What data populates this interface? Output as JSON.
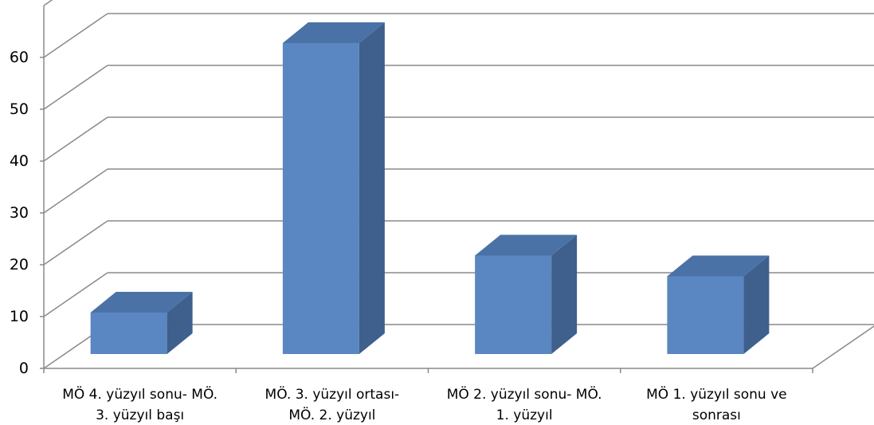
{
  "chart_data": {
    "type": "bar",
    "style": "3d-column",
    "categories": [
      [
        "MÖ 4. yüzyıl sonu- MÖ.",
        "3. yüzyıl başı"
      ],
      [
        "MÖ. 3. yüzyıl ortası-",
        "MÖ. 2. yüzyıl"
      ],
      [
        "MÖ 2. yüzyıl sonu- MÖ.",
        "1. yüzyıl"
      ],
      [
        "MÖ 1. yüzyıl sonu ve",
        "sonrası"
      ]
    ],
    "values": [
      8,
      60,
      19,
      15
    ],
    "ylim": [
      0,
      70
    ],
    "yticks": [
      0,
      10,
      20,
      30,
      40,
      50,
      60
    ],
    "grid": true,
    "legend": "none",
    "title": "",
    "xlabel": "",
    "ylabel": "",
    "colors": {
      "bar_front": "#5A87C2",
      "bar_top": "#4A72A6",
      "bar_side": "#3F5F8C",
      "grid": "#8A8A8A",
      "axis": "#8A8A8A"
    }
  }
}
